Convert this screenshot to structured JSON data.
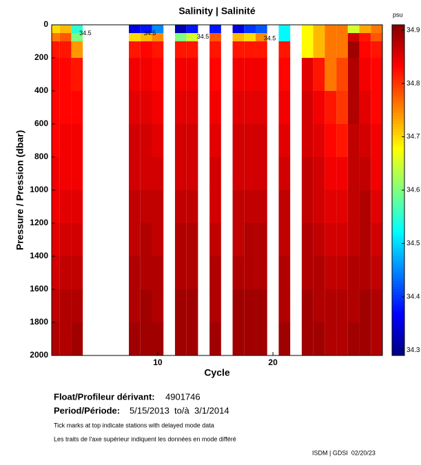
{
  "chart_data": {
    "type": "heatmap",
    "title": "Salinity | Salinité",
    "colorbar_unit": "psu",
    "y_label": "Pressure / Pression (dbar)",
    "x_label": "Cycle",
    "x": [
      1,
      2,
      3,
      4,
      5,
      6,
      7,
      8,
      9,
      10,
      11,
      12,
      13,
      14,
      15,
      16,
      17,
      18,
      19,
      20,
      21,
      22,
      23,
      24,
      25,
      26,
      27,
      28,
      29
    ],
    "pressure_bins": [
      0,
      50,
      100,
      200,
      400,
      600,
      800,
      1000,
      1200,
      1400,
      1600,
      1800,
      2000
    ],
    "values": [
      [
        34.7,
        34.76,
        34.82,
        34.83,
        34.83,
        34.83,
        34.84,
        34.84,
        34.85,
        34.86,
        34.87,
        34.88
      ],
      [
        34.72,
        34.78,
        34.82,
        34.83,
        34.83,
        34.84,
        34.84,
        34.85,
        34.86,
        34.87,
        34.88,
        34.88
      ],
      [
        34.55,
        34.6,
        34.74,
        34.82,
        34.83,
        34.84,
        34.84,
        34.85,
        34.86,
        34.87,
        34.88,
        34.89
      ],
      null,
      null,
      null,
      null,
      [
        34.35,
        34.7,
        34.82,
        34.84,
        34.85,
        34.86,
        34.86,
        34.87,
        34.87,
        34.88,
        34.88,
        34.89
      ],
      [
        34.38,
        34.72,
        34.83,
        34.84,
        34.85,
        34.86,
        34.86,
        34.87,
        34.88,
        34.88,
        34.89,
        34.89
      ],
      [
        34.45,
        34.75,
        34.82,
        34.83,
        34.84,
        34.85,
        34.86,
        34.87,
        34.87,
        34.88,
        34.88,
        34.89
      ],
      null,
      [
        34.32,
        34.6,
        34.82,
        34.84,
        34.85,
        34.86,
        34.86,
        34.87,
        34.88,
        34.88,
        34.89,
        34.89
      ],
      [
        34.38,
        34.65,
        34.82,
        34.84,
        34.85,
        34.86,
        34.86,
        34.87,
        34.88,
        34.88,
        34.89,
        34.89
      ],
      null,
      [
        34.38,
        34.78,
        34.82,
        34.83,
        34.84,
        34.85,
        34.86,
        34.86,
        34.87,
        34.88,
        34.88,
        34.89
      ],
      null,
      [
        34.35,
        34.72,
        34.82,
        34.84,
        34.85,
        34.86,
        34.86,
        34.87,
        34.87,
        34.88,
        34.89,
        34.89
      ],
      [
        34.4,
        34.7,
        34.82,
        34.84,
        34.85,
        34.86,
        34.86,
        34.87,
        34.88,
        34.88,
        34.89,
        34.89
      ],
      [
        34.42,
        34.75,
        34.82,
        34.84,
        34.85,
        34.86,
        34.86,
        34.87,
        34.88,
        34.88,
        34.89,
        34.89
      ],
      null,
      [
        34.52,
        34.52,
        34.82,
        34.83,
        34.84,
        34.85,
        34.86,
        34.87,
        34.87,
        34.88,
        34.88,
        34.89
      ],
      null,
      [
        34.68,
        34.68,
        34.68,
        34.85,
        34.86,
        34.86,
        34.87,
        34.87,
        34.88,
        34.88,
        34.89,
        34.89
      ],
      [
        34.72,
        34.72,
        34.72,
        34.82,
        34.84,
        34.85,
        34.86,
        34.86,
        34.87,
        34.88,
        34.88,
        34.89
      ],
      [
        34.76,
        34.76,
        34.76,
        34.76,
        34.82,
        34.83,
        34.84,
        34.85,
        34.86,
        34.87,
        34.88,
        34.88
      ],
      [
        34.76,
        34.76,
        34.76,
        34.79,
        34.8,
        34.82,
        34.84,
        34.85,
        34.86,
        34.87,
        34.88,
        34.88
      ],
      [
        34.65,
        34.86,
        34.89,
        34.88,
        34.88,
        34.87,
        34.87,
        34.87,
        34.87,
        34.88,
        34.88,
        34.89
      ],
      [
        34.73,
        34.82,
        34.83,
        34.84,
        34.85,
        34.86,
        34.87,
        34.88,
        34.88,
        34.88,
        34.89,
        34.89
      ],
      [
        34.76,
        34.78,
        34.82,
        34.83,
        34.83,
        34.84,
        34.84,
        34.85,
        34.86,
        34.87,
        34.88,
        34.88
      ]
    ],
    "colormap": "jet",
    "xlim": [
      0.8,
      29.5
    ],
    "xticks": [
      10,
      20
    ],
    "ylim": [
      0,
      2000
    ],
    "yticks": [
      0,
      200,
      400,
      600,
      800,
      1000,
      1200,
      1400,
      1600,
      1800,
      2000
    ],
    "zlim": [
      34.29,
      34.91
    ],
    "zticks": [
      34.3,
      34.4,
      34.5,
      34.6,
      34.7,
      34.8,
      34.9
    ],
    "annotations": [
      {
        "text": "34.5",
        "x": 3.2,
        "y": 20
      },
      {
        "text": "34.5",
        "x": 8.8,
        "y": 20
      },
      {
        "text": "34.5",
        "x": 13.4,
        "y": 40
      },
      {
        "text": "34.5",
        "x": 19.2,
        "y": 50
      }
    ]
  },
  "footer": {
    "float_label": "Float/Profileur dérivant:",
    "float_id": "4901746",
    "period_label": "Period/Période:",
    "period": "5/15/2013  to/à  3/1/2014",
    "note_en": "Tick marks at top indicate stations with delayed mode data",
    "note_fr": "Les traits de l'axe supérieur indiquent les données en mode différé",
    "credit": "ISDM | GDSI  02/20/23"
  }
}
